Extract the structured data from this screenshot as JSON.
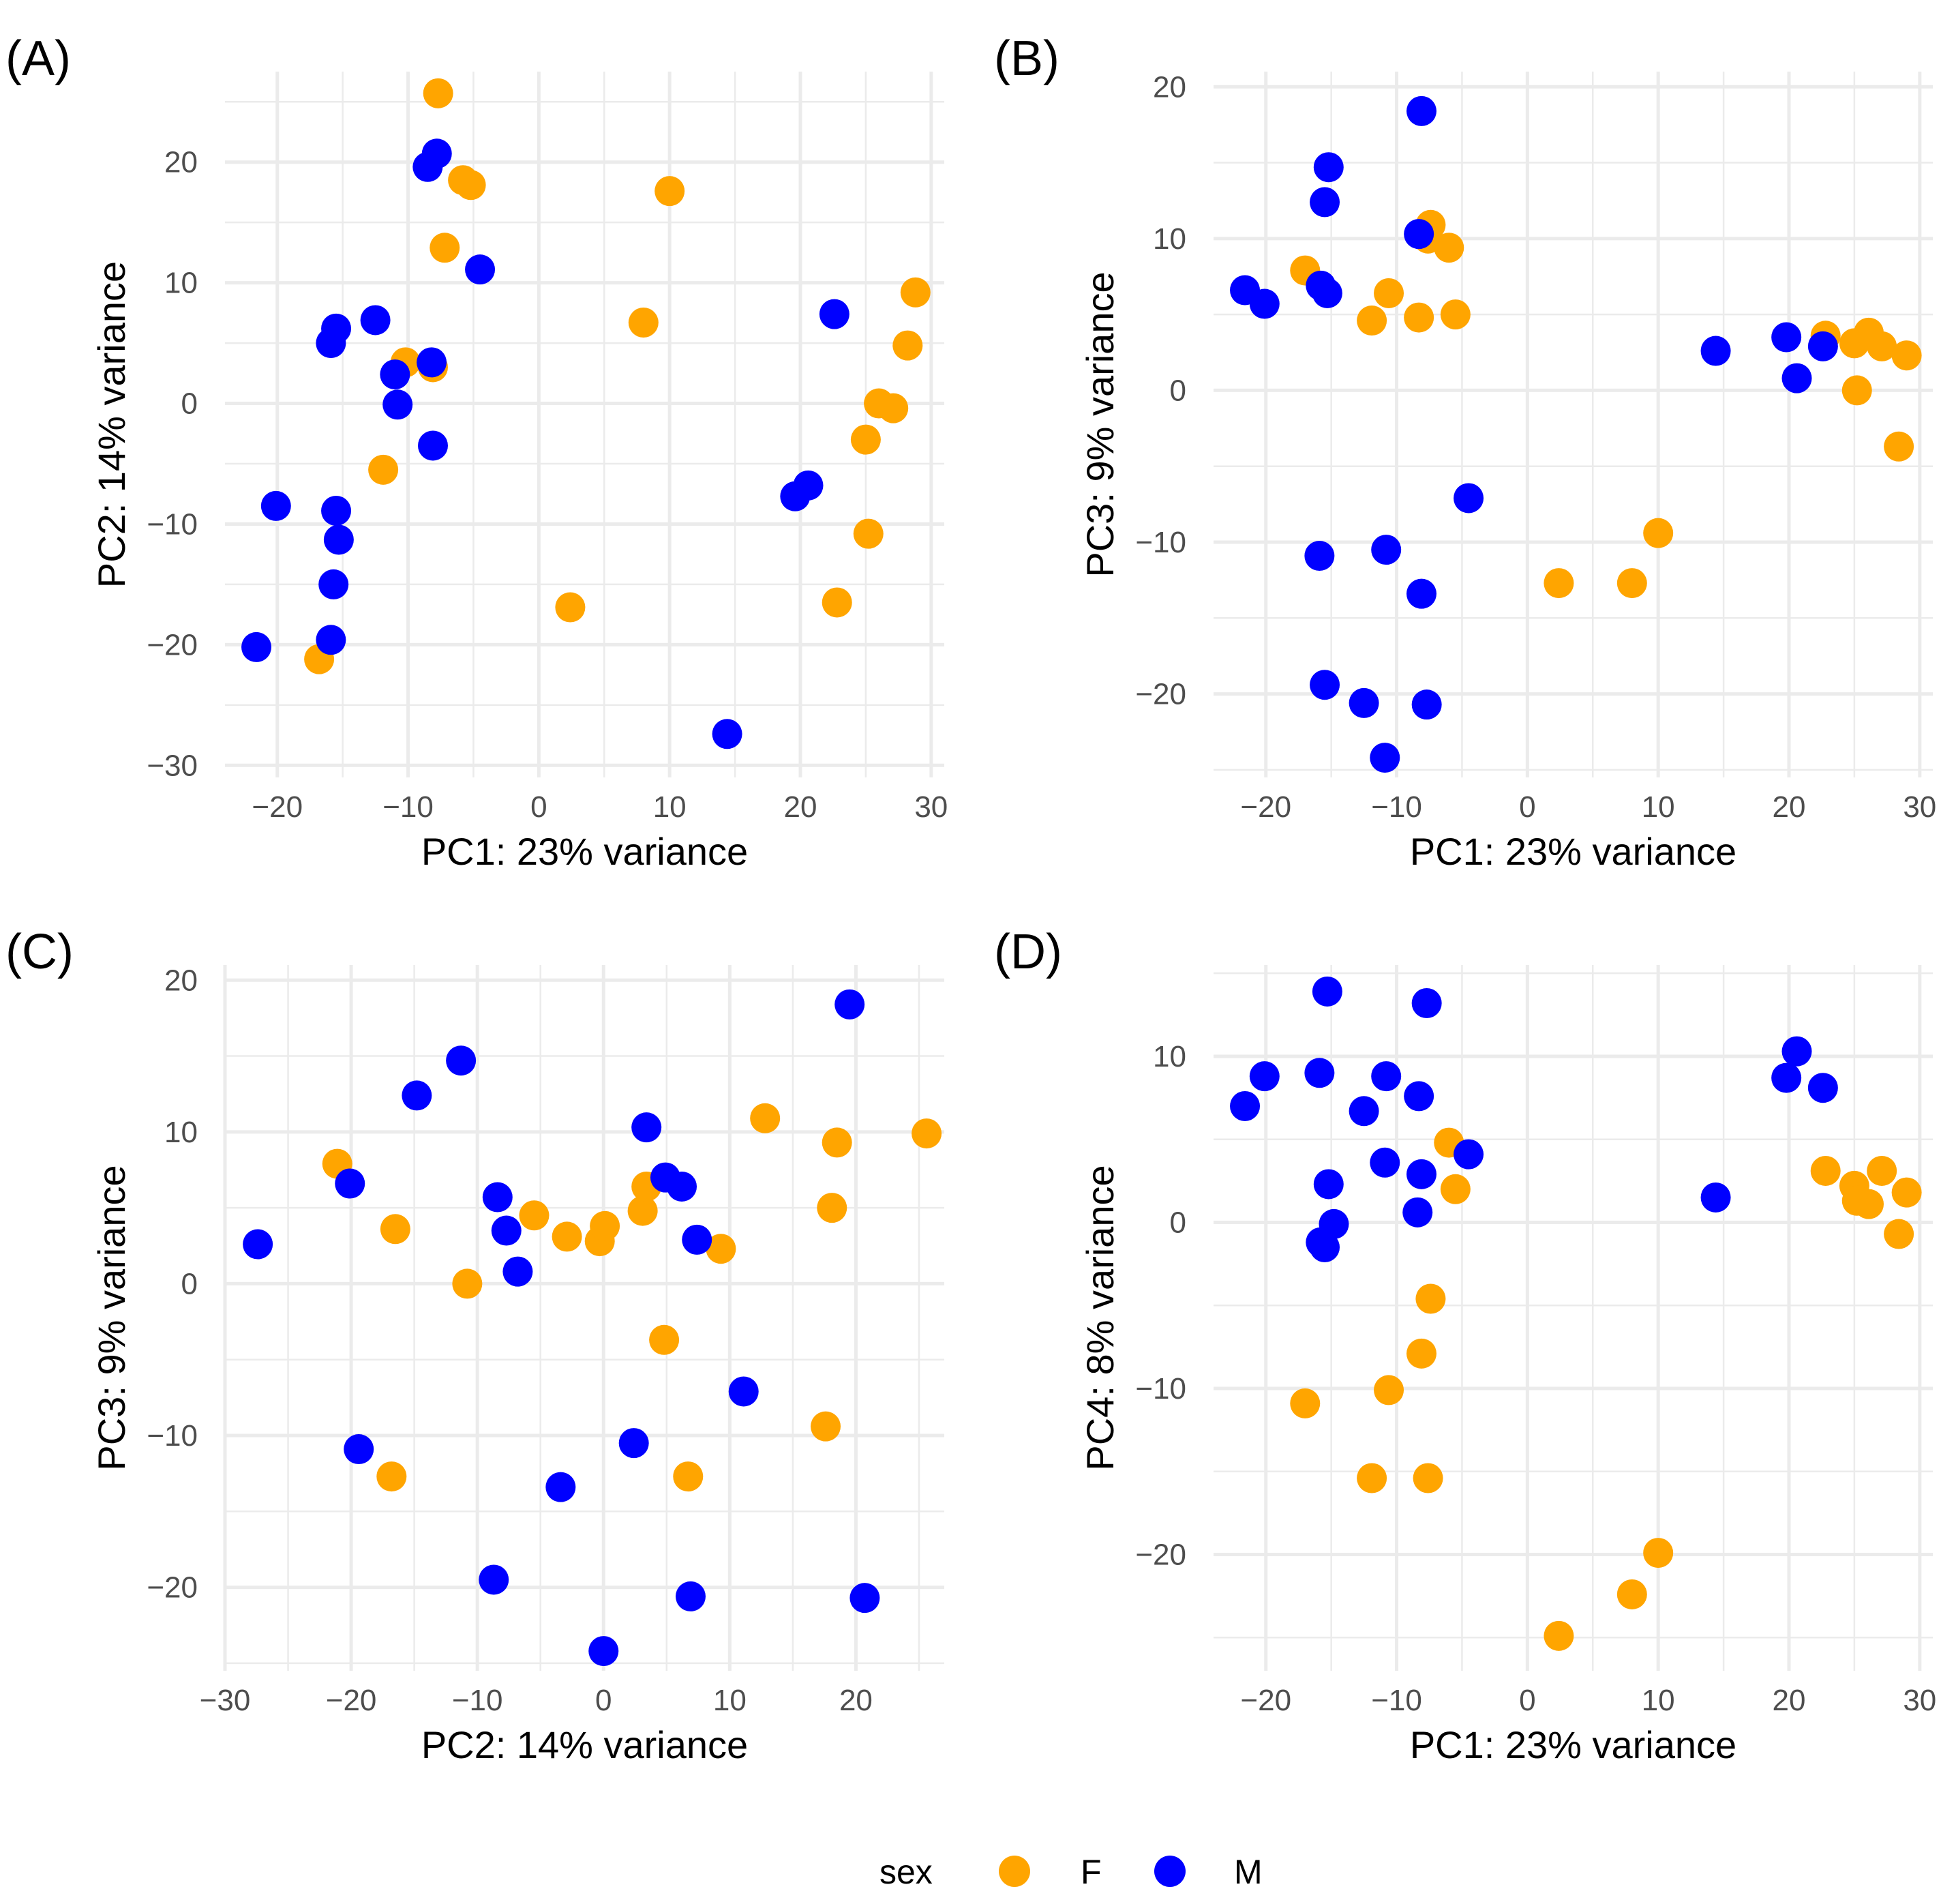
{
  "colors": {
    "F": "#FFA500",
    "M": "#0000FF",
    "grid": "#EBEBEB",
    "tick": "#4D4D4D",
    "text": "#000000"
  },
  "legend": {
    "title": "sex",
    "items": [
      {
        "key": "F",
        "label": "F"
      },
      {
        "key": "M",
        "label": "M"
      }
    ]
  },
  "chart_data": [
    {
      "id": "A",
      "panel_label": "(A)",
      "type": "scatter",
      "xlabel": "PC1: 23% variance",
      "ylabel": "PC2: 14% variance",
      "xlim": [
        -24,
        31
      ],
      "ylim": [
        -31,
        27.5
      ],
      "xticks": [
        -20,
        -10,
        0,
        10,
        20,
        30
      ],
      "yticks": [
        -30,
        -20,
        -10,
        0,
        10,
        20
      ],
      "series": [
        {
          "name": "F",
          "points": [
            [
              -7.7,
              25.7
            ],
            [
              -5.8,
              18.5
            ],
            [
              -5.2,
              18.1
            ],
            [
              -7.2,
              12.9
            ],
            [
              10,
              17.6
            ],
            [
              -10.2,
              3.4
            ],
            [
              -8.1,
              3
            ],
            [
              -11.9,
              -5.5
            ],
            [
              8,
              6.7
            ],
            [
              2.4,
              -16.9
            ],
            [
              -16.8,
              -21.2
            ],
            [
              28.8,
              9.2
            ],
            [
              28.2,
              4.8
            ],
            [
              26,
              0
            ],
            [
              27.1,
              -0.4
            ],
            [
              25,
              -3
            ],
            [
              25.2,
              -10.8
            ],
            [
              22.8,
              -16.5
            ]
          ]
        },
        {
          "name": "M",
          "points": [
            [
              -7.8,
              20.7
            ],
            [
              -8.5,
              19.6
            ],
            [
              -4.5,
              11.1
            ],
            [
              -15.5,
              6.2
            ],
            [
              -15.9,
              5
            ],
            [
              -12.5,
              6.9
            ],
            [
              -11,
              2.4
            ],
            [
              -10.8,
              -0.1
            ],
            [
              -8.2,
              3.4
            ],
            [
              -8.1,
              -3.5
            ],
            [
              -20.1,
              -8.5
            ],
            [
              -15.5,
              -8.9
            ],
            [
              -15.3,
              -11.3
            ],
            [
              -15.7,
              -15
            ],
            [
              -15.9,
              -19.6
            ],
            [
              -21.6,
              -20.2
            ],
            [
              14.4,
              -27.4
            ],
            [
              22.6,
              7.4
            ],
            [
              19.6,
              -7.7
            ],
            [
              20.6,
              -6.8
            ]
          ]
        }
      ]
    },
    {
      "id": "B",
      "panel_label": "(B)",
      "type": "scatter",
      "xlabel": "PC1: 23% variance",
      "ylabel": "PC3: 9% variance",
      "xlim": [
        -24,
        31
      ],
      "ylim": [
        -25.5,
        21
      ],
      "xticks": [
        -20,
        -10,
        0,
        10,
        20,
        30
      ],
      "yticks": [
        -20,
        -10,
        0,
        10,
        20
      ],
      "series": [
        {
          "name": "F",
          "points": [
            [
              -17,
              7.9
            ],
            [
              -10.6,
              6.4
            ],
            [
              -11.9,
              4.6
            ],
            [
              -8.3,
              4.8
            ],
            [
              -5.5,
              5
            ],
            [
              -7.4,
              10.9
            ],
            [
              -7.6,
              10
            ],
            [
              -6,
              9.4
            ],
            [
              22.8,
              3.6
            ],
            [
              25,
              3.1
            ],
            [
              26.1,
              3.8
            ],
            [
              27.1,
              2.9
            ],
            [
              29,
              2.3
            ],
            [
              25.2,
              0
            ],
            [
              28.4,
              -3.7
            ],
            [
              10,
              -9.4
            ],
            [
              8,
              -12.7
            ],
            [
              2.4,
              -12.7
            ]
          ]
        },
        {
          "name": "M",
          "points": [
            [
              -8.1,
              18.4
            ],
            [
              -15.2,
              14.7
            ],
            [
              -15.5,
              12.4
            ],
            [
              -8.3,
              10.3
            ],
            [
              -21.6,
              6.6
            ],
            [
              -20.1,
              5.7
            ],
            [
              -15.8,
              6.9
            ],
            [
              -15.3,
              6.4
            ],
            [
              14.4,
              2.6
            ],
            [
              19.8,
              3.5
            ],
            [
              20.6,
              0.8
            ],
            [
              22.6,
              2.9
            ],
            [
              -4.5,
              -7.1
            ],
            [
              -15.9,
              -10.9
            ],
            [
              -10.8,
              -10.5
            ],
            [
              -8.1,
              -13.4
            ],
            [
              -15.5,
              -19.4
            ],
            [
              -12.5,
              -20.6
            ],
            [
              -7.7,
              -20.7
            ],
            [
              -10.9,
              -24.2
            ]
          ]
        }
      ]
    },
    {
      "id": "C",
      "panel_label": "(C)",
      "type": "scatter",
      "xlabel": "PC2: 14% variance",
      "ylabel": "PC3: 9% variance",
      "xlim": [
        -30,
        27
      ],
      "ylim": [
        -25.5,
        21
      ],
      "xticks": [
        -30,
        -20,
        -10,
        0,
        10,
        20
      ],
      "yticks": [
        -20,
        -10,
        0,
        10,
        20
      ],
      "series": [
        {
          "name": "F",
          "points": [
            [
              -21.1,
              7.9
            ],
            [
              -16.5,
              3.6
            ],
            [
              -5.5,
              4.5
            ],
            [
              -10.8,
              0
            ],
            [
              -2.9,
              3.1
            ],
            [
              -0.3,
              2.8
            ],
            [
              0.1,
              3.8
            ],
            [
              3.1,
              4.8
            ],
            [
              3.4,
              6.4
            ],
            [
              4.8,
              -3.7
            ],
            [
              9.3,
              2.3
            ],
            [
              12.8,
              10.9
            ],
            [
              18.5,
              9.3
            ],
            [
              18.1,
              5
            ],
            [
              25.6,
              9.9
            ],
            [
              17.6,
              -9.4
            ],
            [
              6.7,
              -12.7
            ],
            [
              -16.8,
              -12.7
            ]
          ]
        },
        {
          "name": "M",
          "points": [
            [
              -11.3,
              14.7
            ],
            [
              -14.8,
              12.4
            ],
            [
              -20.1,
              6.6
            ],
            [
              -27.4,
              2.6
            ],
            [
              -8.4,
              5.7
            ],
            [
              -7.7,
              3.5
            ],
            [
              -6.8,
              0.8
            ],
            [
              3.4,
              10.3
            ],
            [
              4.9,
              7
            ],
            [
              6.2,
              6.4
            ],
            [
              7.4,
              2.9
            ],
            [
              19.5,
              18.4
            ],
            [
              11.1,
              -7.1
            ],
            [
              -19.4,
              -10.9
            ],
            [
              2.4,
              -10.5
            ],
            [
              -3.4,
              -13.4
            ],
            [
              -8.7,
              -19.5
            ],
            [
              6.9,
              -20.6
            ],
            [
              20.7,
              -20.7
            ],
            [
              0,
              -24.2
            ]
          ]
        }
      ]
    },
    {
      "id": "D",
      "panel_label": "(D)",
      "type": "scatter",
      "xlabel": "PC1: 23% variance",
      "ylabel": "PC4: 8% variance",
      "xlim": [
        -24,
        31
      ],
      "ylim": [
        -27,
        15.5
      ],
      "xticks": [
        -20,
        -10,
        0,
        10,
        20,
        30
      ],
      "yticks": [
        -20,
        -10,
        0,
        10
      ],
      "series": [
        {
          "name": "F",
          "points": [
            [
              -6,
              4.8
            ],
            [
              -5.5,
              2
            ],
            [
              -7.4,
              -4.6
            ],
            [
              -8.1,
              -7.9
            ],
            [
              -10.6,
              -10.1
            ],
            [
              -17,
              -10.9
            ],
            [
              -11.9,
              -15.4
            ],
            [
              -7.6,
              -15.4
            ],
            [
              10,
              -19.9
            ],
            [
              8,
              -22.4
            ],
            [
              2.4,
              -24.9
            ],
            [
              22.8,
              3.1
            ],
            [
              25,
              2.2
            ],
            [
              25.2,
              1.3
            ],
            [
              26.1,
              1.1
            ],
            [
              27.1,
              3.1
            ],
            [
              29,
              1.8
            ],
            [
              28.4,
              -0.7
            ]
          ]
        },
        {
          "name": "M",
          "points": [
            [
              -15.3,
              13.9
            ],
            [
              -7.7,
              13.2
            ],
            [
              -20.1,
              8.8
            ],
            [
              -15.9,
              9
            ],
            [
              -10.8,
              8.8
            ],
            [
              -8.3,
              7.6
            ],
            [
              -21.6,
              7
            ],
            [
              -12.5,
              6.7
            ],
            [
              -10.9,
              3.6
            ],
            [
              -8.1,
              2.9
            ],
            [
              -4.5,
              4.1
            ],
            [
              -15.2,
              2.3
            ],
            [
              -14.8,
              -0.1
            ],
            [
              -8.4,
              0.6
            ],
            [
              -15.8,
              -1.2
            ],
            [
              -15.5,
              -1.5
            ],
            [
              14.4,
              1.5
            ],
            [
              20.6,
              10.3
            ],
            [
              19.8,
              8.7
            ],
            [
              22.6,
              8.1
            ]
          ]
        }
      ]
    }
  ]
}
